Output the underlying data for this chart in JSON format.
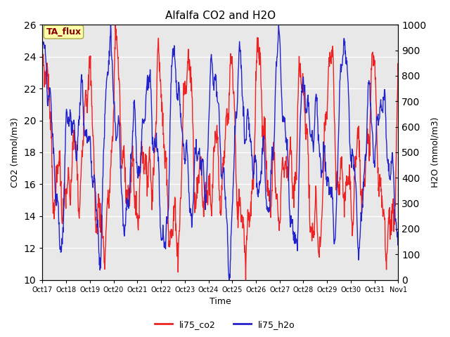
{
  "title": "Alfalfa CO2 and H2O",
  "xlabel": "Time",
  "ylabel_left": "CO2 (mmol/m3)",
  "ylabel_right": "H2O (mmol/m3)",
  "ylim_left": [
    10,
    26
  ],
  "ylim_right": [
    0,
    1000
  ],
  "yticks_left": [
    10,
    12,
    14,
    16,
    18,
    20,
    22,
    24,
    26
  ],
  "yticks_right": [
    0,
    100,
    200,
    300,
    400,
    500,
    600,
    700,
    800,
    900,
    1000
  ],
  "xtick_labels": [
    "Oct 17",
    "Oct 18",
    "Oct 19",
    "Oct 20",
    "Oct 21",
    "Oct 22",
    "Oct 23",
    "Oct 24",
    "Oct 25",
    "Oct 26",
    "Oct 27",
    "Oct 28",
    "Oct 29",
    "Oct 30",
    "Oct 31",
    "Nov 1"
  ],
  "color_co2": "#EE2222",
  "color_h2o": "#2222CC",
  "legend_label_co2": "li75_co2",
  "legend_label_h2o": "li75_h2o",
  "annotation_text": "TA_flux",
  "annotation_bg": "#FFFFAA",
  "annotation_border": "#AAAA44",
  "plot_bg": "#E8E8E8",
  "fig_bg": "#FFFFFF",
  "grid_color": "#FFFFFF",
  "grid_linewidth": 1.0,
  "line_width": 1.0,
  "figsize": [
    6.4,
    4.8
  ],
  "dpi": 100
}
